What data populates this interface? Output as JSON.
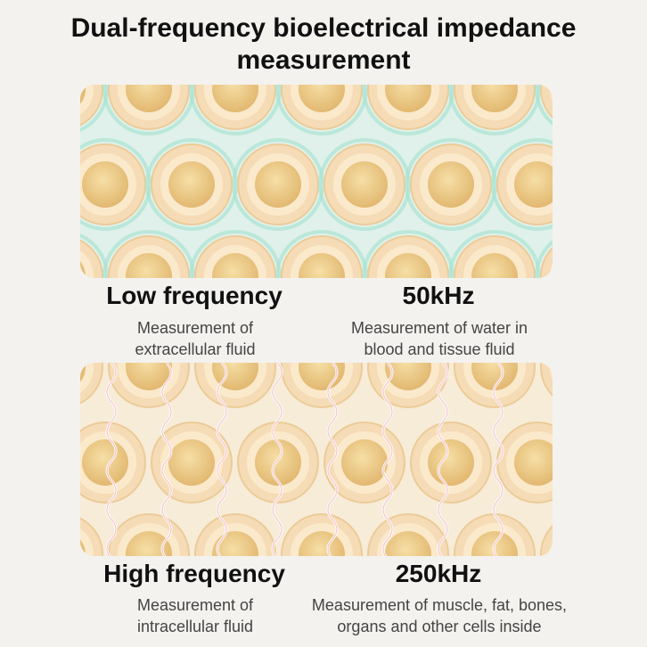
{
  "header": {
    "title_lines": [
      "Dual-frequency bioelectrical impedance",
      "measurement"
    ]
  },
  "sections": [
    {
      "label": "Low frequency",
      "frequency": "50kHz",
      "left_description": [
        "Measurement of",
        "extracellular fluid"
      ],
      "right_description": [
        "Measurement of water in",
        "blood and tissue fluid"
      ]
    },
    {
      "label": "High frequency",
      "frequency": "250kHz",
      "left_description": [
        "Measurement of",
        "intracellular fluid"
      ],
      "right_description": [
        "Measurement of muscle, fat, bones,",
        "organs and other cells inside"
      ]
    }
  ]
}
